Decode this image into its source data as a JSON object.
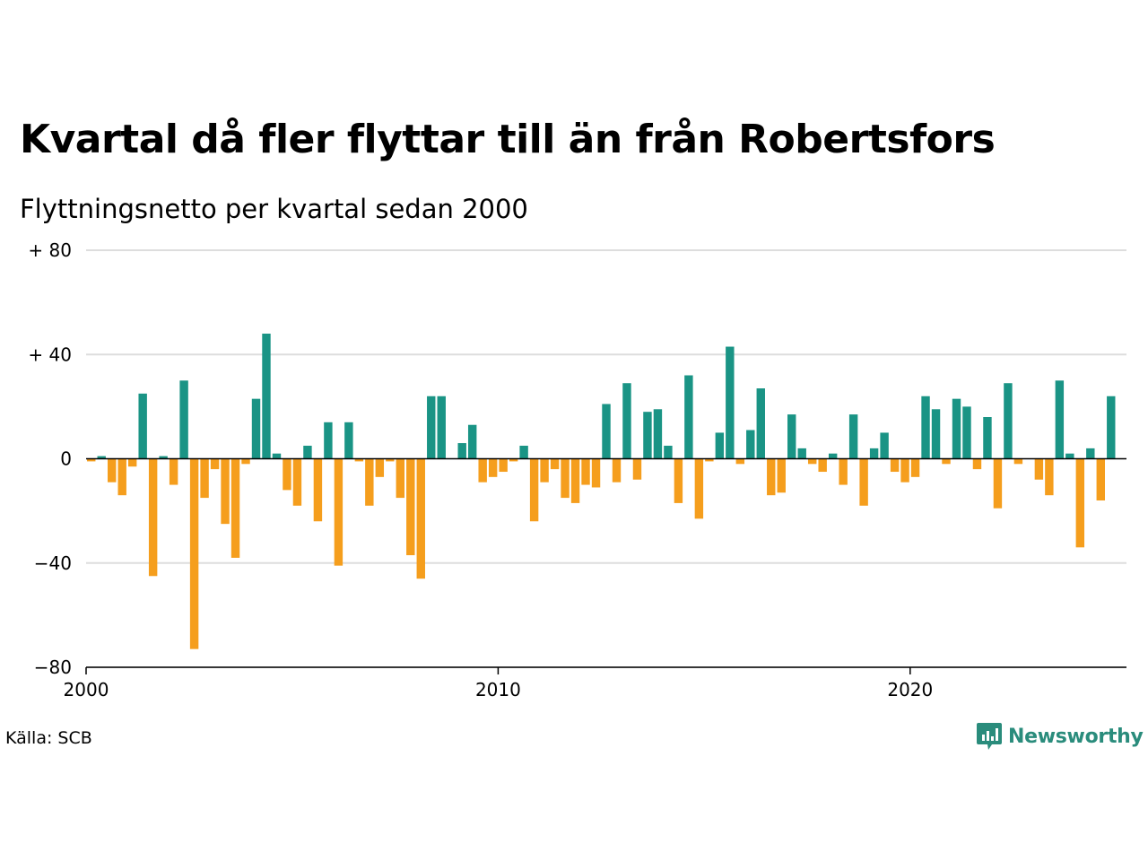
{
  "title": "Kvartal då fler flyttar till än från Robertsfors",
  "subtitle": "Flyttningsnetto per kvartal sedan 2000",
  "source": "Källa: SCB",
  "logo": {
    "text": "Newsworthy",
    "icon": "newsworthy-logo-icon"
  },
  "colors": {
    "positive": "#1a9485",
    "negative": "#f59e1d",
    "grid": "#dddddd",
    "zero": "#000000"
  },
  "chart_data": {
    "type": "bar",
    "title": "Kvartal då fler flyttar till än från Robertsfors",
    "subtitle": "Flyttningsnetto per kvartal sedan 2000",
    "xlabel": "",
    "ylabel": "",
    "ylim": [
      -80,
      80
    ],
    "yticks": [
      80,
      40,
      0,
      -40,
      -80
    ],
    "ytick_labels": [
      "+ 80",
      "+ 40",
      "0",
      "−40",
      "−80"
    ],
    "xlim": [
      2000,
      2025.25
    ],
    "xticks": [
      2000,
      2010,
      2020
    ],
    "xtick_labels": [
      "2000",
      "2010",
      "2020"
    ],
    "grid": true,
    "legend": "none",
    "series": [
      {
        "start": 2000,
        "period": "quarter",
        "values": [
          -1,
          1,
          -9,
          -14,
          -3,
          25,
          -45,
          1,
          -10,
          30,
          -73,
          -15,
          -4,
          -25,
          -38,
          -2,
          23,
          48,
          2,
          -12,
          -18,
          5,
          -24,
          14,
          -41,
          14,
          -1,
          -18,
          -7,
          -1,
          -15,
          -37,
          -46,
          24,
          24,
          0,
          6,
          13,
          -9,
          -7,
          -5,
          -1,
          5,
          -24,
          -9,
          -4,
          -15,
          -17,
          -10,
          -11,
          21,
          -9,
          29,
          -8,
          18,
          19,
          5,
          -17,
          32,
          -23,
          -1,
          10,
          43,
          -2,
          11,
          27,
          -14,
          -13,
          17,
          4,
          -2,
          -5,
          2,
          -10,
          17,
          -18,
          4,
          10,
          -5,
          -9,
          -7,
          24,
          19,
          -2,
          23,
          20,
          -4,
          16,
          -19,
          29,
          -2,
          0,
          -8,
          -14,
          30,
          2,
          -34,
          4,
          -16,
          24
        ]
      }
    ]
  }
}
